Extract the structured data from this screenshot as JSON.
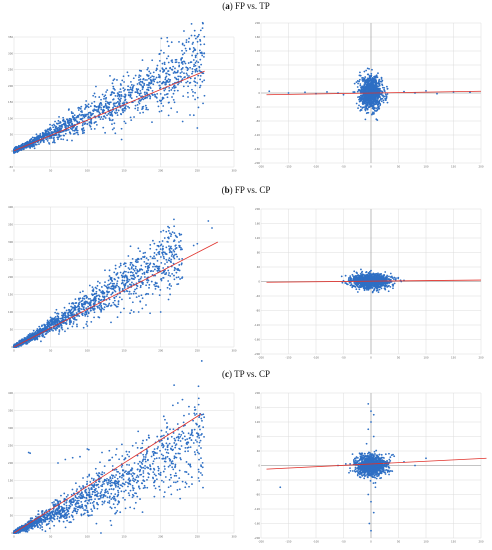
{
  "sections": [
    {
      "label": "a",
      "title": "FP vs. TP"
    },
    {
      "label": "b",
      "title": "FP vs. CP"
    },
    {
      "label": "c",
      "title": "TP vs. CP"
    }
  ],
  "colors": {
    "points": "#2e6fc4",
    "fit_line": "#e0302a",
    "grid": "#dcdcdc",
    "axis": "#9a9a9a"
  },
  "chart_data": [
    {
      "id": "a-left",
      "type": "scatter",
      "title": "",
      "xlabel": "",
      "ylabel": "",
      "xlim": [
        0,
        300
      ],
      "ylim": [
        -50,
        350
      ],
      "xticks": [
        "0",
        "50",
        "100",
        "150",
        "200",
        "250",
        "300"
      ],
      "yticks": [
        "-50",
        "0",
        "50",
        "100",
        "150",
        "200",
        "250",
        "300",
        "350"
      ],
      "grid": true,
      "cloud": {
        "slope": 1.05,
        "intercept": 0,
        "xmax": 260,
        "spread": 0.22
      },
      "fit_line": {
        "x": [
          0,
          260
        ],
        "y": [
          0,
          245
        ]
      },
      "outliers": [
        [
          225,
          335
        ],
        [
          230,
          330
        ],
        [
          248,
          345
        ],
        [
          250,
          350
        ],
        [
          210,
          245
        ],
        [
          215,
          250
        ],
        [
          220,
          240
        ],
        [
          190,
          220
        ],
        [
          205,
          185
        ],
        [
          230,
          90
        ],
        [
          250,
          70
        ],
        [
          240,
          110
        ],
        [
          170,
          150
        ],
        [
          175,
          160
        ],
        [
          180,
          165
        ],
        [
          185,
          170
        ],
        [
          200,
          175
        ]
      ]
    },
    {
      "id": "a-right",
      "type": "scatter",
      "title": "",
      "xlabel": "",
      "ylabel": "",
      "xlim": [
        -200,
        200
      ],
      "ylim": [
        -200,
        200
      ],
      "xticks": [
        "-200",
        "-150",
        "-100",
        "-50",
        "0",
        "50",
        "100",
        "150",
        "200"
      ],
      "yticks": [
        "-200",
        "-160",
        "-120",
        "-80",
        "-40",
        "0",
        "40",
        "80",
        "120",
        "160",
        "200"
      ],
      "grid": true,
      "cloud": {
        "cx": 0,
        "cy": 0,
        "sx": 10,
        "sy": 22
      },
      "fit_line": {
        "x": [
          -190,
          200
        ],
        "y": [
          -5,
          5
        ]
      },
      "outliers": [
        [
          -185,
          5
        ],
        [
          -150,
          0
        ],
        [
          -120,
          2
        ],
        [
          -100,
          -2
        ],
        [
          -80,
          3
        ],
        [
          -60,
          0
        ],
        [
          -50,
          -5
        ],
        [
          -30,
          2
        ],
        [
          30,
          -3
        ],
        [
          60,
          4
        ],
        [
          80,
          0
        ],
        [
          100,
          6
        ],
        [
          120,
          -2
        ],
        [
          150,
          3
        ],
        [
          180,
          2
        ],
        [
          0,
          40
        ],
        [
          5,
          -60
        ],
        [
          -10,
          -50
        ],
        [
          15,
          -45
        ],
        [
          10,
          50
        ]
      ]
    },
    {
      "id": "b-left",
      "type": "scatter",
      "title": "",
      "xlabel": "",
      "ylabel": "",
      "xlim": [
        0,
        300
      ],
      "ylim": [
        0,
        400
      ],
      "xticks": [
        "0",
        "50",
        "100",
        "150",
        "200",
        "250",
        "300"
      ],
      "yticks": [
        "0",
        "50",
        "100",
        "150",
        "200",
        "250",
        "300",
        "350",
        "400"
      ],
      "grid": true,
      "cloud": {
        "slope": 1.18,
        "intercept": 0,
        "xmax": 230,
        "spread": 0.18
      },
      "fit_line": {
        "x": [
          0,
          278
        ],
        "y": [
          0,
          300
        ]
      },
      "outliers": [
        [
          200,
          290
        ],
        [
          210,
          300
        ],
        [
          220,
          280
        ],
        [
          225,
          300
        ],
        [
          270,
          340
        ],
        [
          265,
          360
        ],
        [
          245,
          290
        ],
        [
          250,
          295
        ],
        [
          215,
          260
        ],
        [
          140,
          115
        ],
        [
          150,
          110
        ],
        [
          160,
          105
        ],
        [
          170,
          100
        ],
        [
          175,
          110
        ],
        [
          180,
          120
        ],
        [
          200,
          100
        ],
        [
          100,
          60
        ],
        [
          95,
          55
        ]
      ]
    },
    {
      "id": "b-right",
      "type": "scatter",
      "title": "",
      "xlabel": "",
      "ylabel": "",
      "xlim": [
        -200,
        200
      ],
      "ylim": [
        -200,
        200
      ],
      "xticks": [
        "-200",
        "-150",
        "-100",
        "-50",
        "0",
        "50",
        "100",
        "150",
        "200"
      ],
      "yticks": [
        "-200",
        "-160",
        "-120",
        "-80",
        "-40",
        "0",
        "40",
        "80",
        "120",
        "160",
        "200"
      ],
      "grid": true,
      "cloud": {
        "cx": 0,
        "cy": 0,
        "sx": 18,
        "sy": 10
      },
      "fit_line": {
        "x": [
          -190,
          200
        ],
        "y": [
          -2,
          4
        ]
      },
      "outliers": [
        [
          -50,
          2
        ],
        [
          -45,
          -5
        ],
        [
          -40,
          10
        ],
        [
          40,
          -8
        ],
        [
          45,
          5
        ],
        [
          55,
          0
        ],
        [
          60,
          3
        ],
        [
          0,
          30
        ],
        [
          5,
          -25
        ]
      ]
    },
    {
      "id": "c-left",
      "type": "scatter",
      "title": "",
      "xlabel": "",
      "ylabel": "",
      "xlim": [
        0,
        300
      ],
      "ylim": [
        0,
        400
      ],
      "xticks": [
        "0",
        "50",
        "100",
        "150",
        "200",
        "250",
        "300"
      ],
      "yticks": [
        "0",
        "50",
        "100",
        "150",
        "200",
        "250",
        "300",
        "350",
        "400"
      ],
      "grid": true,
      "cloud": {
        "slope": 1.05,
        "intercept": 0,
        "xmax": 260,
        "spread": 0.25
      },
      "fit_line": {
        "x": [
          0,
          255
        ],
        "y": [
          0,
          340
        ]
      },
      "outliers": [
        [
          20,
          230
        ],
        [
          22,
          228
        ],
        [
          100,
          240
        ],
        [
          102,
          238
        ],
        [
          60,
          200
        ],
        [
          70,
          210
        ],
        [
          80,
          215
        ],
        [
          90,
          218
        ],
        [
          120,
          230
        ],
        [
          130,
          235
        ],
        [
          140,
          240
        ],
        [
          250,
          275
        ],
        [
          255,
          280
        ],
        [
          220,
          265
        ],
        [
          230,
          270
        ],
        [
          240,
          272
        ]
      ]
    },
    {
      "id": "c-right",
      "type": "scatter",
      "title": "",
      "xlabel": "",
      "ylabel": "",
      "xlim": [
        -200,
        200
      ],
      "ylim": [
        -200,
        200
      ],
      "xticks": [
        "-200",
        "-150",
        "-100",
        "-50",
        "0",
        "50",
        "100",
        "150",
        "200"
      ],
      "yticks": [
        "-200",
        "-160",
        "-120",
        "-80",
        "-40",
        "0",
        "40",
        "80",
        "120",
        "160",
        "200"
      ],
      "grid": true,
      "cloud": {
        "cx": 0,
        "cy": 0,
        "sx": 14,
        "sy": 14
      },
      "fit_line": {
        "x": [
          -190,
          210
        ],
        "y": [
          -10,
          20
        ]
      },
      "outliers": [
        [
          -165,
          -60
        ],
        [
          -5,
          170
        ],
        [
          0,
          150
        ],
        [
          5,
          140
        ],
        [
          0,
          120
        ],
        [
          -5,
          100
        ],
        [
          5,
          80
        ],
        [
          -8,
          60
        ],
        [
          8,
          -60
        ],
        [
          -5,
          -80
        ],
        [
          0,
          -100
        ],
        [
          5,
          -130
        ],
        [
          -3,
          -160
        ],
        [
          0,
          -180
        ],
        [
          60,
          10
        ],
        [
          80,
          0
        ],
        [
          100,
          20
        ],
        [
          -60,
          0
        ],
        [
          -40,
          -20
        ],
        [
          40,
          30
        ]
      ]
    }
  ]
}
